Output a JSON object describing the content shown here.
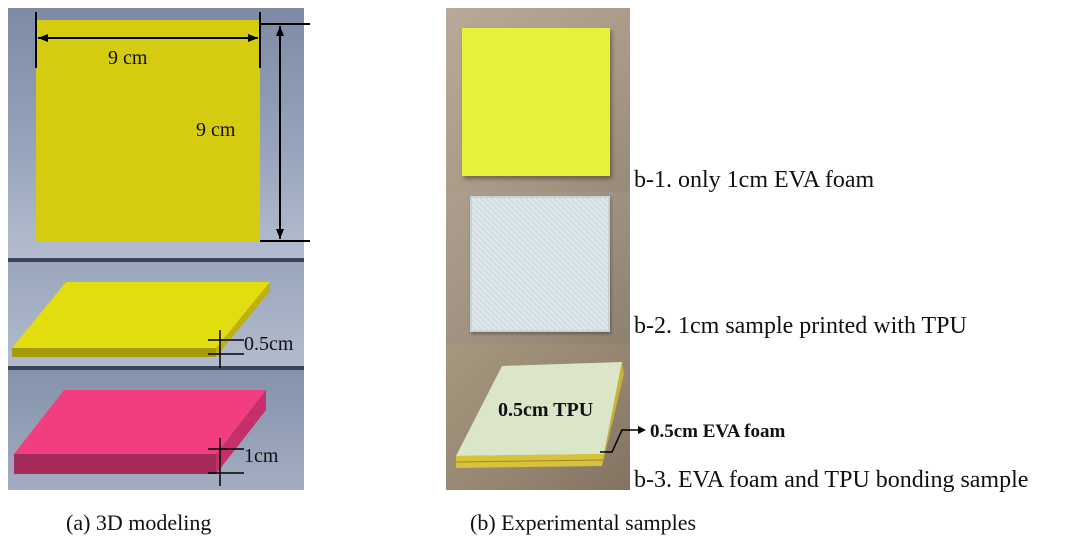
{
  "panel_a": {
    "width_label": "9 cm",
    "height_label": "9 cm",
    "thin_label": "0.5cm",
    "thick_label": "1cm",
    "caption": "(a) 3D modeling"
  },
  "panel_b": {
    "tpu_overlay": "0.5cm TPU",
    "eva_callout": "0.5cm EVA foam",
    "items": [
      {
        "label": "b-1. only 1cm EVA foam"
      },
      {
        "label": "b-2. 1cm sample printed with TPU"
      },
      {
        "label": "b-3. EVA foam and TPU bonding sample"
      }
    ],
    "caption": "(b) Experimental samples"
  },
  "colors": {
    "model_yellow": "#d5cc12",
    "model_pink": "#f23d80",
    "eva_foam": "#e4f239"
  }
}
